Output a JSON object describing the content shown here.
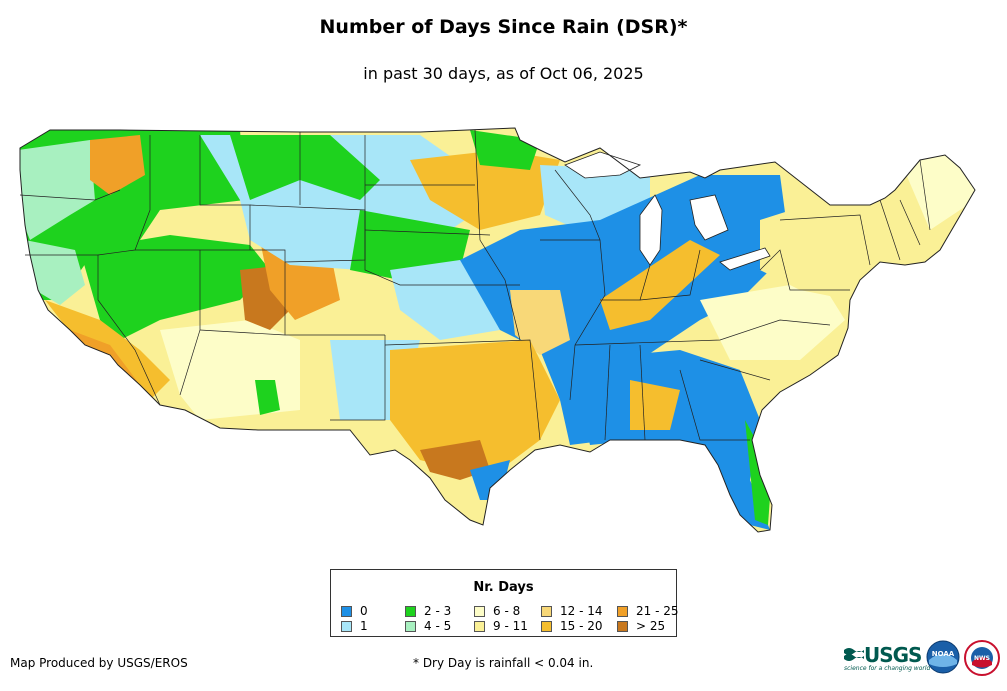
{
  "header": {
    "title": "Number of Days Since Rain (DSR)*",
    "subtitle": "in past 30 days, as of Oct 06, 2025"
  },
  "legend": {
    "title": "Nr. Days",
    "items": [
      {
        "label": "0",
        "color": "#1e90e6"
      },
      {
        "label": "1",
        "color": "#a8e6f8"
      },
      {
        "label": "2 - 3",
        "color": "#1ed21e"
      },
      {
        "label": "4 - 5",
        "color": "#a8f0c0"
      },
      {
        "label": "6 - 8",
        "color": "#fdfdc8"
      },
      {
        "label": "9 - 11",
        "color": "#faf096"
      },
      {
        "label": "12 - 14",
        "color": "#f8d878"
      },
      {
        "label": "15 - 20",
        "color": "#f5be2e"
      },
      {
        "label": "21 - 25",
        "color": "#f0a028"
      },
      {
        "label": "> 25",
        "color": "#c8781e"
      }
    ]
  },
  "footer": {
    "credit": "Map Produced by USGS/EROS",
    "footnote": "* Dry Day is rainfall < 0.04 in."
  },
  "logos": {
    "usgs_text": "USGS",
    "usgs_tagline": "science for a changing world",
    "noaa_text": "NOAA",
    "nws_text": "NWS"
  }
}
